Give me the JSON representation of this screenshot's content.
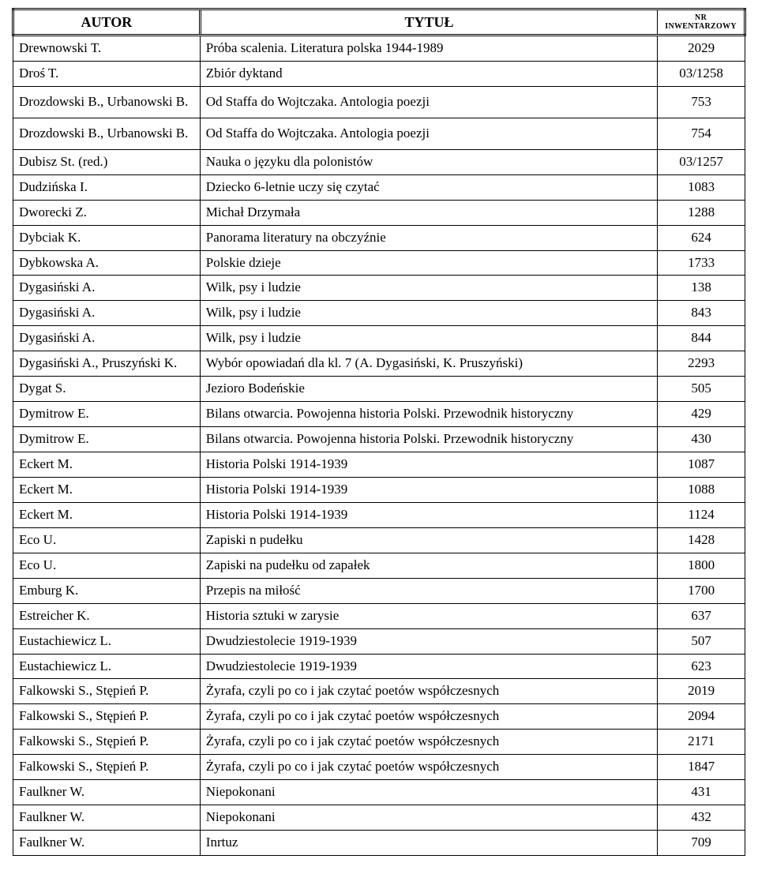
{
  "headers": {
    "author": "AUTOR",
    "title": "TYTUŁ",
    "inv": "NR INWENTARZOWY"
  },
  "rows": [
    {
      "author": "Drewnowski T.",
      "title": "Próba scalenia. Literatura polska 1944-1989",
      "inv": "2029"
    },
    {
      "author": "Droś T.",
      "title": "Zbiór dyktand",
      "inv": "03/1258"
    },
    {
      "author": "Drozdowski B., Urbanowski B.",
      "title": "Od Staffa do Wojtczaka. Antologia poezji",
      "inv": "753",
      "tall": true
    },
    {
      "author": "Drozdowski B., Urbanowski B.",
      "title": "Od Staffa do Wojtczaka. Antologia poezji",
      "inv": "754",
      "tall": true
    },
    {
      "author": "Dubisz St. (red.)",
      "title": "Nauka o języku dla polonistów",
      "inv": "03/1257"
    },
    {
      "author": "Dudzińska I.",
      "title": "Dziecko 6-letnie uczy się czytać",
      "inv": "1083"
    },
    {
      "author": "Dworecki Z.",
      "title": "Michał Drzymała",
      "inv": "1288"
    },
    {
      "author": "Dybciak K.",
      "title": "Panorama literatury na obczyźnie",
      "inv": "624"
    },
    {
      "author": "Dybkowska A.",
      "title": "Polskie dzieje",
      "inv": "1733"
    },
    {
      "author": "Dygasiński A.",
      "title": "Wilk, psy i ludzie",
      "inv": "138"
    },
    {
      "author": "Dygasiński A.",
      "title": "Wilk, psy i ludzie",
      "inv": "843"
    },
    {
      "author": "Dygasiński A.",
      "title": "Wilk, psy i ludzie",
      "inv": "844"
    },
    {
      "author": "Dygasiński A., Pruszyński K.",
      "title": "Wybór opowiadań dla kl. 7 (A. Dygasiński, K. Pruszyński)",
      "inv": "2293"
    },
    {
      "author": "Dygat S.",
      "title": "Jezioro Bodeńskie",
      "inv": "505"
    },
    {
      "author": "Dymitrow E.",
      "title": "Bilans otwarcia. Powojenna historia Polski. Przewodnik historyczny",
      "inv": "429"
    },
    {
      "author": "Dymitrow E.",
      "title": "Bilans otwarcia. Powojenna historia Polski. Przewodnik historyczny",
      "inv": "430"
    },
    {
      "author": "Eckert M.",
      "title": "Historia Polski 1914-1939",
      "inv": "1087"
    },
    {
      "author": "Eckert M.",
      "title": "Historia Polski 1914-1939",
      "inv": "1088"
    },
    {
      "author": "Eckert M.",
      "title": "Historia Polski 1914-1939",
      "inv": "1124"
    },
    {
      "author": "Eco U.",
      "title": "Zapiski n pudełku",
      "inv": "1428"
    },
    {
      "author": "Eco U.",
      "title": "Zapiski na pudełku od zapałek",
      "inv": "1800"
    },
    {
      "author": "Emburg K.",
      "title": "Przepis na miłość",
      "inv": "1700"
    },
    {
      "author": "Estreicher K.",
      "title": "Historia sztuki w zarysie",
      "inv": "637"
    },
    {
      "author": "Eustachiewicz L.",
      "title": "Dwudziestolecie 1919-1939",
      "inv": "507"
    },
    {
      "author": "Eustachiewicz L.",
      "title": "Dwudziestolecie 1919-1939",
      "inv": "623"
    },
    {
      "author": "Falkowski S., Stępień P.",
      "title": "Żyrafa, czyli po co i jak czytać poetów współczesnych",
      "inv": "2019"
    },
    {
      "author": "Falkowski S., Stępień P.",
      "title": "Żyrafa, czyli po co i jak czytać poetów współczesnych",
      "inv": "2094"
    },
    {
      "author": "Falkowski S., Stępień P.",
      "title": "Żyrafa, czyli po co i jak czytać poetów współczesnych",
      "inv": "2171"
    },
    {
      "author": "Falkowski S., Stępień P.",
      "title": "Żyrafa, czyli po co i jak czytać poetów współczesnych",
      "inv": "1847"
    },
    {
      "author": "Faulkner W.",
      "title": "Niepokonani",
      "inv": "431"
    },
    {
      "author": "Faulkner W.",
      "title": "Niepokonani",
      "inv": "432"
    },
    {
      "author": "Faulkner W.",
      "title": "Inrtuz",
      "inv": "709"
    }
  ]
}
